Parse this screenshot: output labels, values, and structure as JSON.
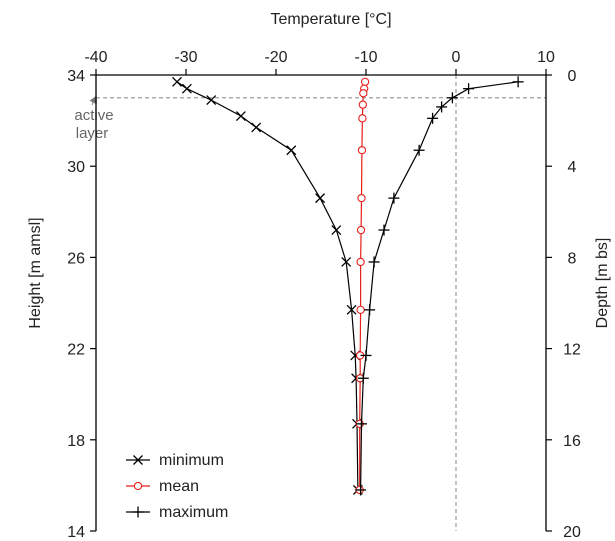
{
  "chart_data": {
    "type": "line",
    "title": "",
    "xlabel": "Temperature [°C]",
    "ylabel_left": "Height [m amsl]",
    "ylabel_right": "Depth [m bs]",
    "xlim": [
      -40,
      10
    ],
    "ylim_left": [
      14,
      34
    ],
    "ylim_right": [
      0,
      20
    ],
    "x_ticks": [
      "-40",
      "-30",
      "-20",
      "-10",
      "0",
      "10"
    ],
    "y_ticks_left": [
      "14",
      "18",
      "22",
      "26",
      "30",
      "34"
    ],
    "y_ticks_right": [
      "0",
      "4",
      "8",
      "12",
      "16",
      "20"
    ],
    "grid": false,
    "legend_position": "bottom-left",
    "series": [
      {
        "name": "minimum",
        "color": "#000000",
        "marker": "x",
        "points": [
          [
            -31.0,
            33.7
          ],
          [
            -29.9,
            33.4
          ],
          [
            -27.2,
            32.9
          ],
          [
            -23.9,
            32.2
          ],
          [
            -22.2,
            31.7
          ],
          [
            -18.3,
            30.7
          ],
          [
            -15.1,
            28.6
          ],
          [
            -13.3,
            27.2
          ],
          [
            -12.2,
            25.8
          ],
          [
            -11.6,
            23.7
          ],
          [
            -11.2,
            21.7
          ],
          [
            -11.1,
            20.7
          ],
          [
            -11.0,
            18.7
          ],
          [
            -10.9,
            15.8
          ]
        ]
      },
      {
        "name": "mean",
        "color": "#e8201c",
        "marker": "circle",
        "points": [
          [
            -10.1,
            33.7
          ],
          [
            -10.2,
            33.4
          ],
          [
            -10.3,
            33.2
          ],
          [
            -10.35,
            32.7
          ],
          [
            -10.4,
            32.1
          ],
          [
            -10.45,
            30.7
          ],
          [
            -10.5,
            28.6
          ],
          [
            -10.55,
            27.2
          ],
          [
            -10.6,
            25.8
          ],
          [
            -10.6,
            23.7
          ],
          [
            -10.65,
            21.7
          ],
          [
            -10.65,
            20.7
          ],
          [
            -10.7,
            18.7
          ],
          [
            -10.7,
            15.8
          ]
        ]
      },
      {
        "name": "maximum",
        "color": "#000000",
        "marker": "plus",
        "points": [
          [
            6.9,
            33.7
          ],
          [
            1.4,
            33.4
          ],
          [
            -0.4,
            33.0
          ],
          [
            -1.6,
            32.6
          ],
          [
            -2.6,
            32.1
          ],
          [
            -4.1,
            30.7
          ],
          [
            -6.9,
            28.6
          ],
          [
            -8.0,
            27.2
          ],
          [
            -9.1,
            25.8
          ],
          [
            -9.6,
            23.7
          ],
          [
            -10.0,
            21.7
          ],
          [
            -10.3,
            20.7
          ],
          [
            -10.5,
            18.7
          ],
          [
            -10.6,
            15.8
          ]
        ]
      }
    ],
    "reference_lines": [
      {
        "orientation": "horizontal",
        "y": 33.0,
        "style": "dashed"
      },
      {
        "orientation": "vertical",
        "x": 0,
        "style": "dashed"
      }
    ],
    "annotations": [
      {
        "text_lines": [
          "active",
          "layer"
        ],
        "x": -40,
        "y": 33.0
      }
    ]
  }
}
